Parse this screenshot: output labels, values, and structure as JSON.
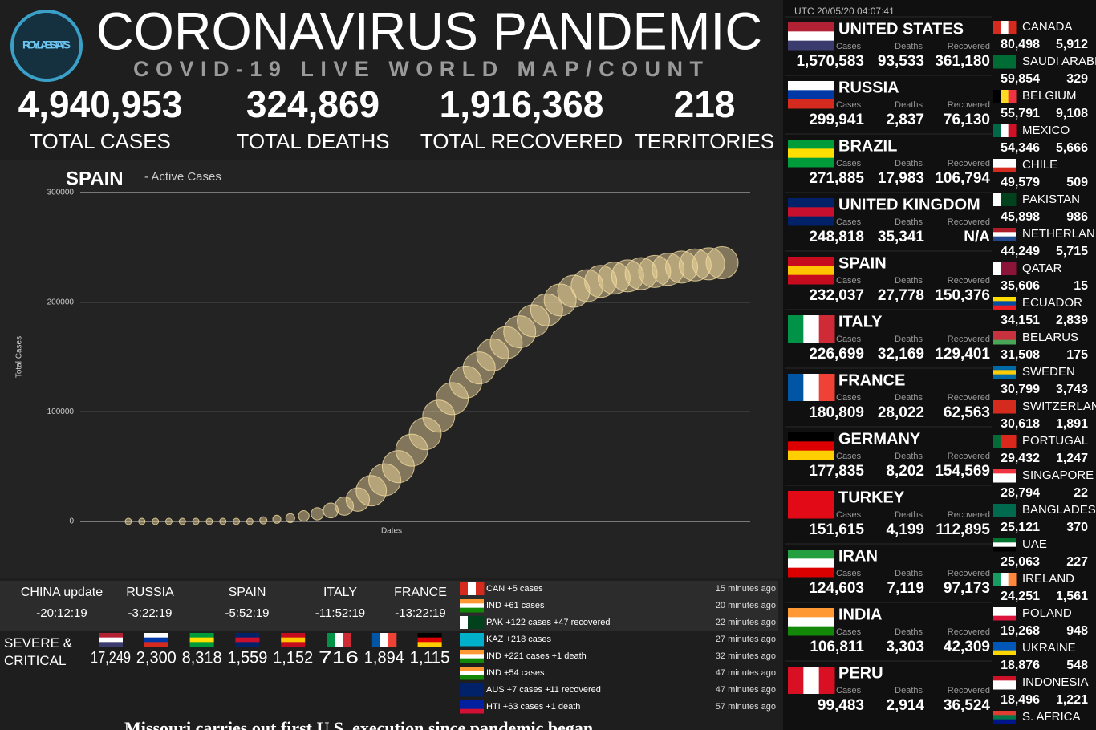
{
  "header": {
    "logo": "ROYLAB STATS",
    "title": "CORONAVIRUS PANDEMIC",
    "subtitle": "COVID-19 LIVE WORLD MAP/COUNT"
  },
  "totals": [
    {
      "value": "4,940,953",
      "label": "TOTAL CASES"
    },
    {
      "value": "324,869",
      "label": "TOTAL DEATHS"
    },
    {
      "value": "1,916,368",
      "label": "TOTAL RECOVERED"
    },
    {
      "value": "218",
      "label": "TERRITORIES"
    }
  ],
  "chart": {
    "type": "scatter",
    "title": "SPAIN",
    "subtitle": "- Active Cases",
    "y_label": "Total Cases",
    "x_label": "Dates",
    "ylim": [
      0,
      300000
    ],
    "yticks": [
      0,
      100000,
      200000,
      300000
    ],
    "grid": true,
    "color": "#f3dca0",
    "categories": [
      null,
      null,
      null,
      null,
      null,
      null,
      null,
      null,
      null,
      null,
      null,
      null,
      null,
      null,
      null,
      null,
      null,
      null,
      null,
      null,
      null,
      null,
      null,
      null,
      null,
      null,
      null,
      null,
      null,
      null,
      null,
      null,
      null,
      null,
      null,
      null,
      null,
      null,
      null,
      null,
      null,
      null,
      null,
      null,
      null
    ],
    "values": [
      0,
      0,
      0,
      0,
      0,
      0,
      0,
      0,
      0,
      0,
      1000,
      2000,
      3000,
      5000,
      7000,
      10000,
      14000,
      20000,
      28000,
      38000,
      50000,
      65000,
      80000,
      96000,
      112000,
      127000,
      140000,
      152000,
      163000,
      173000,
      183000,
      193000,
      202000,
      210000,
      215000,
      219000,
      222000,
      224000,
      226000,
      228000,
      230000,
      232000,
      234000,
      235000,
      236000
    ]
  },
  "timezones": [
    {
      "name": "CHINA update",
      "time": "-20:12:19"
    },
    {
      "name": "RUSSIA",
      "time": "-3:22:19"
    },
    {
      "name": "SPAIN",
      "time": "-5:52:19"
    },
    {
      "name": "ITALY",
      "time": "-11:52:19"
    },
    {
      "name": "FRANCE",
      "time": "-13:22:19"
    }
  ],
  "severe": {
    "label": "SEVERE & CRITICAL",
    "values": [
      "17,249",
      "2,300",
      "8,318",
      "1,559",
      "1,152",
      "716",
      "1,894",
      "1,115"
    ]
  },
  "feed": [
    {
      "text": "CAN +5 cases",
      "time": "15 minutes ago"
    },
    {
      "text": "IND +61 cases",
      "time": "20 minutes ago"
    },
    {
      "text": "PAK +122 cases +47 recovered",
      "time": "22 minutes ago"
    },
    {
      "text": "KAZ +218 cases",
      "time": "27 minutes ago"
    },
    {
      "text": "IND +221 cases +1 death",
      "time": "32 minutes ago"
    },
    {
      "text": "IND +54 cases",
      "time": "47 minutes ago"
    },
    {
      "text": "AUS +7 cases +11 recovered",
      "time": "47 minutes ago"
    },
    {
      "text": "HTI +63 cases +1 death",
      "time": "57 minutes ago"
    }
  ],
  "ticker": "Missouri carries out first U.S. execution since pandemic began",
  "panel": {
    "timestamp": "UTC 20/05/20 04:07:41",
    "labels": {
      "cases": "Cases",
      "deaths": "Deaths",
      "recovered": "Recovered"
    },
    "major": [
      {
        "name": "UNITED STATES",
        "cases": "1,570,583",
        "deaths": "93,533",
        "recovered": "361,180"
      },
      {
        "name": "RUSSIA",
        "cases": "299,941",
        "deaths": "2,837",
        "recovered": "76,130"
      },
      {
        "name": "BRAZIL",
        "cases": "271,885",
        "deaths": "17,983",
        "recovered": "106,794"
      },
      {
        "name": "UNITED KINGDOM",
        "cases": "248,818",
        "deaths": "35,341",
        "recovered": "N/A"
      },
      {
        "name": "SPAIN",
        "cases": "232,037",
        "deaths": "27,778",
        "recovered": "150,376"
      },
      {
        "name": "ITALY",
        "cases": "226,699",
        "deaths": "32,169",
        "recovered": "129,401"
      },
      {
        "name": "FRANCE",
        "cases": "180,809",
        "deaths": "28,022",
        "recovered": "62,563"
      },
      {
        "name": "GERMANY",
        "cases": "177,835",
        "deaths": "8,202",
        "recovered": "154,569"
      },
      {
        "name": "TURKEY",
        "cases": "151,615",
        "deaths": "4,199",
        "recovered": "112,895"
      },
      {
        "name": "IRAN",
        "cases": "124,603",
        "deaths": "7,119",
        "recovered": "97,173"
      },
      {
        "name": "INDIA",
        "cases": "106,811",
        "deaths": "3,303",
        "recovered": "42,309"
      },
      {
        "name": "PERU",
        "cases": "99,483",
        "deaths": "2,914",
        "recovered": "36,524"
      }
    ],
    "minor": [
      {
        "name": "CANADA",
        "cases": "80,498",
        "deaths": "5,912"
      },
      {
        "name": "SAUDI ARABIA",
        "cases": "59,854",
        "deaths": "329"
      },
      {
        "name": "BELGIUM",
        "cases": "55,791",
        "deaths": "9,108"
      },
      {
        "name": "MEXICO",
        "cases": "54,346",
        "deaths": "5,666"
      },
      {
        "name": "CHILE",
        "cases": "49,579",
        "deaths": "509"
      },
      {
        "name": "PAKISTAN",
        "cases": "45,898",
        "deaths": "986"
      },
      {
        "name": "NETHERLANDS",
        "cases": "44,249",
        "deaths": "5,715"
      },
      {
        "name": "QATAR",
        "cases": "35,606",
        "deaths": "15"
      },
      {
        "name": "ECUADOR",
        "cases": "34,151",
        "deaths": "2,839"
      },
      {
        "name": "BELARUS",
        "cases": "31,508",
        "deaths": "175"
      },
      {
        "name": "SWEDEN",
        "cases": "30,799",
        "deaths": "3,743"
      },
      {
        "name": "SWITZERLAND",
        "cases": "30,618",
        "deaths": "1,891"
      },
      {
        "name": "PORTUGAL",
        "cases": "29,432",
        "deaths": "1,247"
      },
      {
        "name": "SINGAPORE",
        "cases": "28,794",
        "deaths": "22"
      },
      {
        "name": "BANGLADESH",
        "cases": "25,121",
        "deaths": "370"
      },
      {
        "name": "UAE",
        "cases": "25,063",
        "deaths": "227"
      },
      {
        "name": "IRELAND",
        "cases": "24,251",
        "deaths": "1,561"
      },
      {
        "name": "POLAND",
        "cases": "19,268",
        "deaths": "948"
      },
      {
        "name": "UKRAINE",
        "cases": "18,876",
        "deaths": "548"
      },
      {
        "name": "INDONESIA",
        "cases": "18,496",
        "deaths": "1,221"
      },
      {
        "name": "S. AFRICA"
      }
    ]
  }
}
